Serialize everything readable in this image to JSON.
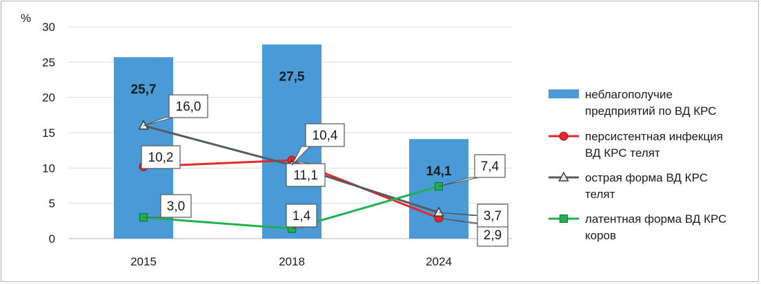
{
  "chart_data": {
    "type": "bar",
    "categories": [
      "2015",
      "2018",
      "2024"
    ],
    "ylabel": "%",
    "ylim": [
      0,
      30
    ],
    "yticks": [
      "0",
      "5",
      "10",
      "15",
      "20",
      "25",
      "30"
    ],
    "grid": true,
    "legend_position": "right",
    "bars": {
      "name": "неблагополучие предприятий по ВД КРС",
      "name_lines": [
        "неблагополучие",
        "предприятий по ВД КРС"
      ],
      "color": "#4a9ad8",
      "values": [
        25.7,
        27.5,
        14.1
      ],
      "labels": [
        "25,7",
        "27,5",
        "14,1"
      ]
    },
    "series": [
      {
        "name": "персистентная инфекция ВД КРС телят",
        "name_lines": [
          "персистентная инфекция",
          "ВД КРС телят"
        ],
        "color": "#e8262a",
        "marker": "circle",
        "values": [
          10.2,
          11.1,
          2.9
        ],
        "labels": [
          "10,2",
          "11,1",
          "2,9"
        ]
      },
      {
        "name": "острая форма ВД КРС телят",
        "name_lines": [
          "острая форма ВД КРС",
          "телят"
        ],
        "color": "#555b60",
        "marker": "triangle",
        "values": [
          16.0,
          10.4,
          3.7
        ],
        "labels": [
          "16,0",
          "10,4",
          "3,7"
        ]
      },
      {
        "name": "латентная форма ВД КРС коров",
        "name_lines": [
          "латентная форма ВД КРС",
          "коров"
        ],
        "color": "#1fb04f",
        "marker": "square",
        "values": [
          3.0,
          1.4,
          7.4
        ],
        "labels": [
          "3,0",
          "1,4",
          "7,4"
        ]
      }
    ]
  }
}
